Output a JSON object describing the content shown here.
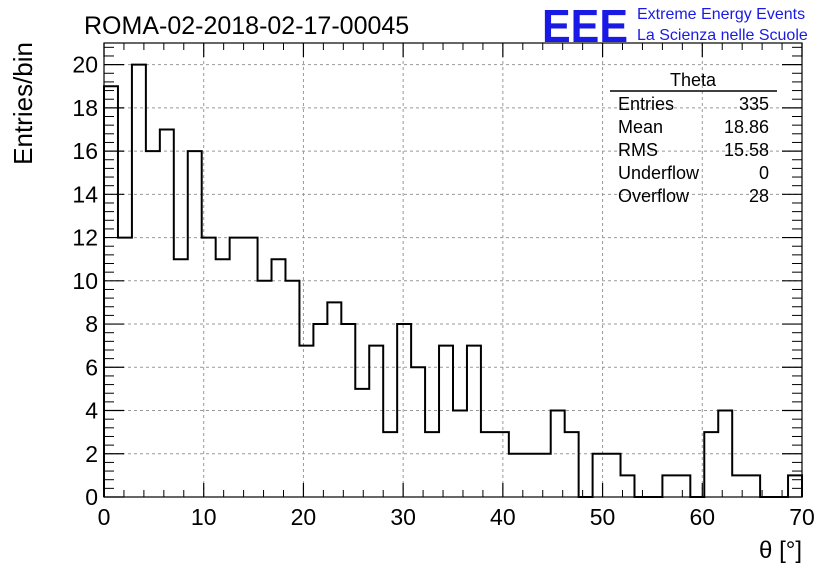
{
  "chart_data": {
    "type": "histogram",
    "title": "ROMA-02-2018-02-17-00045",
    "xlabel": "θ [°]",
    "ylabel": "Entries/bin",
    "xlim": [
      0,
      70
    ],
    "ylim": [
      0,
      21
    ],
    "bin_width": 1.4,
    "x_ticks": [
      0,
      10,
      20,
      30,
      40,
      50,
      60,
      70
    ],
    "y_ticks": [
      0,
      2,
      4,
      6,
      8,
      10,
      12,
      14,
      16,
      18,
      20
    ],
    "grid": true,
    "counts": [
      19,
      12,
      20,
      16,
      17,
      11,
      16,
      12,
      11,
      12,
      12,
      10,
      11,
      10,
      7,
      8,
      9,
      8,
      5,
      7,
      3,
      8,
      6,
      3,
      7,
      4,
      7,
      3,
      3,
      2,
      2,
      2,
      4,
      3,
      0,
      2,
      2,
      1,
      0,
      0,
      1,
      1,
      0,
      3,
      4,
      1,
      1,
      0,
      0,
      1
    ],
    "stats": {
      "title": "Theta",
      "rows": [
        {
          "label": "Entries",
          "value": "335"
        },
        {
          "label": "Mean",
          "value": "18.86"
        },
        {
          "label": "RMS",
          "value": "15.58"
        },
        {
          "label": "Underflow",
          "value": "0"
        },
        {
          "label": "Overflow",
          "value": "28"
        }
      ]
    }
  },
  "logo": {
    "mark": "EEE",
    "line1": "Extreme Energy Events",
    "line2": "La Scienza nelle Scuole",
    "color": "#1a1ae6"
  }
}
